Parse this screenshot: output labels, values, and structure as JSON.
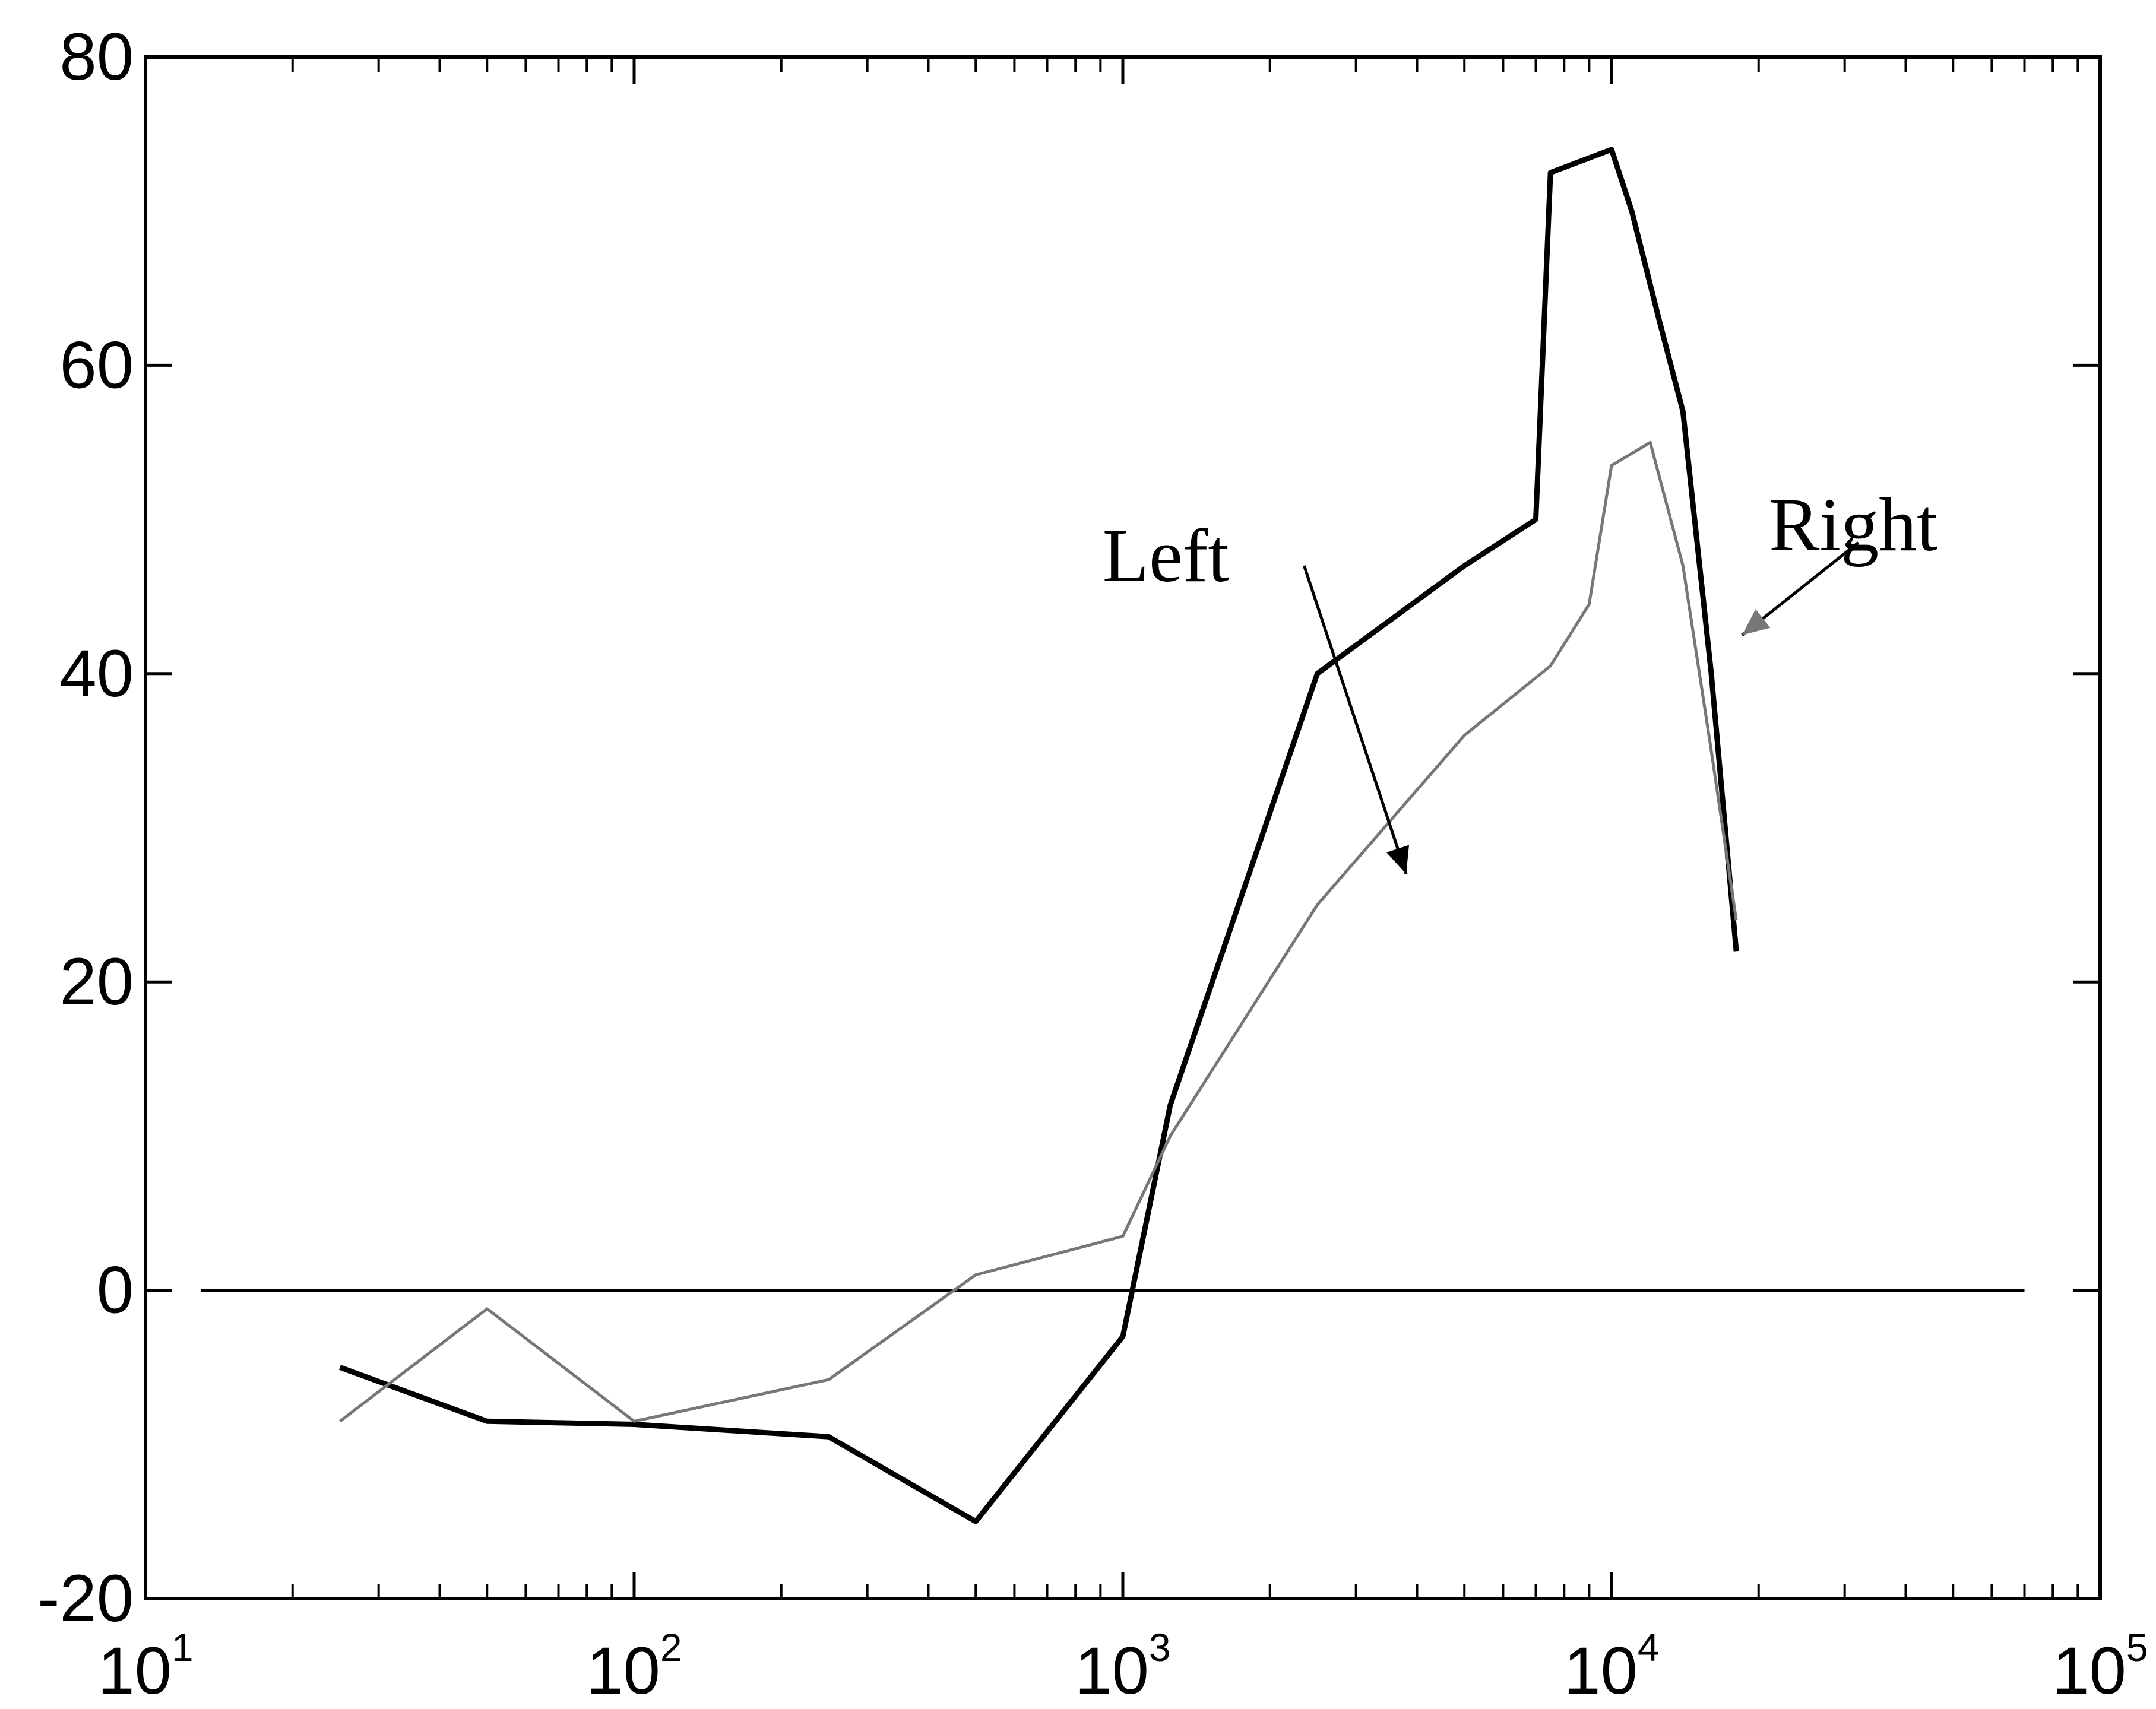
{
  "chart_data": {
    "type": "line",
    "title": "",
    "xlabel": "",
    "ylabel": "",
    "xscale": "log",
    "xlim": [
      10,
      100000
    ],
    "ylim": [
      -20,
      80
    ],
    "grid": false,
    "legend": "none",
    "x_ticks": [
      {
        "base": "10",
        "exp": "1",
        "value": 10
      },
      {
        "base": "10",
        "exp": "2",
        "value": 100
      },
      {
        "base": "10",
        "exp": "3",
        "value": 1000
      },
      {
        "base": "10",
        "exp": "4",
        "value": 10000
      },
      {
        "base": "10",
        "exp": "5",
        "value": 100000
      }
    ],
    "y_ticks": [
      "80",
      "60",
      "40",
      "20",
      "0",
      "-20"
    ],
    "reference_line": {
      "y": 0,
      "x_start": 13,
      "x_end": 70000
    },
    "series": [
      {
        "name": "Left",
        "color": "#000000",
        "points": [
          [
            25,
            -5
          ],
          [
            50,
            -8.5
          ],
          [
            100,
            -8.7
          ],
          [
            250,
            -9.5
          ],
          [
            500,
            -15
          ],
          [
            1000,
            -3
          ],
          [
            1250,
            12
          ],
          [
            2500,
            40
          ],
          [
            5000,
            47
          ],
          [
            7000,
            50
          ],
          [
            7500,
            72.5
          ],
          [
            10000,
            74
          ],
          [
            11000,
            70
          ],
          [
            12500,
            63
          ],
          [
            14000,
            57
          ],
          [
            16000,
            40
          ],
          [
            18000,
            22
          ]
        ]
      },
      {
        "name": "Right",
        "color": "#777777",
        "points": [
          [
            25,
            -8.5
          ],
          [
            50,
            -1.2
          ],
          [
            100,
            -8.5
          ],
          [
            250,
            -5.8
          ],
          [
            500,
            1
          ],
          [
            1000,
            3.5
          ],
          [
            1250,
            10
          ],
          [
            2500,
            25
          ],
          [
            5000,
            36
          ],
          [
            7500,
            40.5
          ],
          [
            9000,
            44.5
          ],
          [
            10000,
            53.5
          ],
          [
            12000,
            55
          ],
          [
            14000,
            47
          ],
          [
            16000,
            35
          ],
          [
            18000,
            24
          ]
        ]
      }
    ],
    "annotations": [
      {
        "text": "Left",
        "series": "Left",
        "text_at": [
          1650,
          46
        ],
        "tail": [
          2350,
          47
        ],
        "arrow_tip": [
          3800,
          27
        ]
      },
      {
        "text": "Right",
        "series": "Right",
        "text_at": [
          21000,
          48
        ],
        "tail": [
          32000,
          48.5
        ],
        "arrow_tip": [
          18500,
          42.5
        ]
      }
    ]
  }
}
